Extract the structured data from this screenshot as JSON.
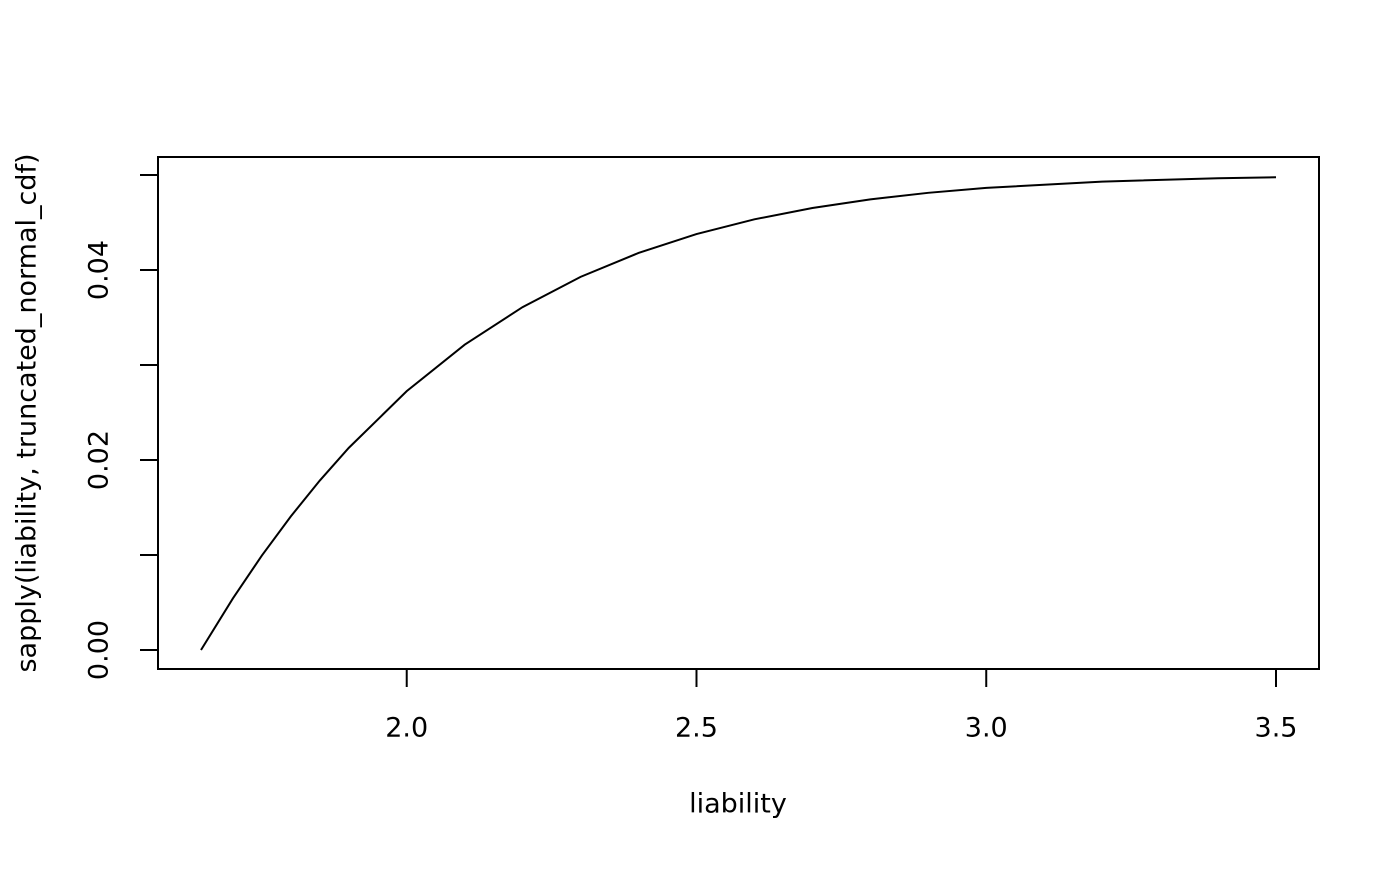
{
  "chart_data": {
    "type": "line",
    "x_label": "liability",
    "y_label": "sapply(liability, truncated_normal_cdf)",
    "x": [
      1.645,
      1.7,
      1.75,
      1.8,
      1.85,
      1.9,
      2.0,
      2.1,
      2.2,
      2.3,
      2.4,
      2.5,
      2.6,
      2.7,
      2.8,
      2.9,
      3.0,
      3.2,
      3.4,
      3.5
    ],
    "series": [
      {
        "color": "#000000",
        "values": [
          0,
          0.00543,
          0.00994,
          0.01407,
          0.01784,
          0.02128,
          0.02725,
          0.03214,
          0.0361,
          0.03928,
          0.0418,
          0.04379,
          0.04534,
          0.04653,
          0.04744,
          0.04813,
          0.04865,
          0.04931,
          0.04966,
          0.04977
        ]
      }
    ],
    "xlim": [
      1.5708,
      3.5742
    ],
    "ylim": [
      -0.002,
      0.0519
    ],
    "xticks": [
      {
        "value": 2,
        "label": "2.0"
      },
      {
        "value": 2.5,
        "label": "2.5"
      },
      {
        "value": 3,
        "label": "3.0"
      },
      {
        "value": 3.5,
        "label": "3.5"
      }
    ],
    "yticks": [
      {
        "value": 0,
        "label": "0.00"
      },
      {
        "value": 0.01,
        "label": null
      },
      {
        "value": 0.02,
        "label": "0.02"
      },
      {
        "value": 0.03,
        "label": null
      },
      {
        "value": 0.04,
        "label": "0.04"
      },
      {
        "value": 0.05,
        "label": null
      }
    ]
  }
}
